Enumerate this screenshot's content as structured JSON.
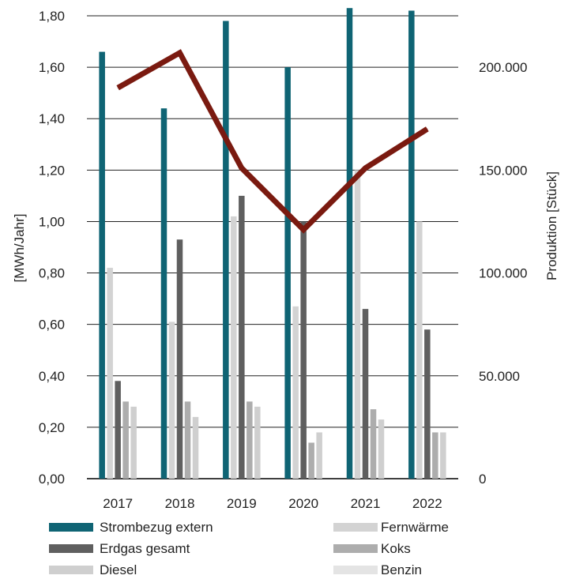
{
  "chart_data": {
    "type": "bar",
    "categories": [
      "2017",
      "2018",
      "2019",
      "2020",
      "2021",
      "2022"
    ],
    "ylabel": "[MWh/Jahr]",
    "ylim": [
      0,
      1.8
    ],
    "y_ticks": [
      "0,00",
      "0,20",
      "0,40",
      "0,60",
      "0,80",
      "1,00",
      "1,20",
      "1,40",
      "1,60",
      "1,80"
    ],
    "y2label": "Produktion [Stück]",
    "y2lim": [
      0,
      225000
    ],
    "y2_ticks": [
      "0",
      "50.000",
      "100.000",
      "150.000",
      "200.000"
    ],
    "grid": true,
    "legend_position": "bottom",
    "series": [
      {
        "name": "Strombezug extern",
        "color": "#0f6474",
        "values": [
          1.66,
          1.44,
          1.78,
          1.6,
          1.83,
          1.82
        ]
      },
      {
        "name": "Fernwärme",
        "color": "#d3d3d3",
        "values": [
          0.82,
          0.61,
          1.02,
          0.67,
          1.2,
          1.0
        ]
      },
      {
        "name": "Erdgas gesamt",
        "color": "#5f5f5f",
        "values": [
          0.38,
          0.93,
          1.1,
          1.0,
          0.66,
          0.58
        ]
      },
      {
        "name": "Koks",
        "color": "#adadad",
        "values": [
          0.3,
          0.3,
          0.3,
          0.14,
          0.27,
          0.18
        ]
      },
      {
        "name": "Diesel",
        "color": "#cfcfcf",
        "values": [
          0.28,
          0.24,
          0.28,
          0.18,
          0.23,
          0.18
        ]
      }
    ],
    "legend_entries": [
      {
        "name": "Strombezug extern",
        "color": "#0f6474"
      },
      {
        "name": "Fernwärme",
        "color": "#d3d3d3"
      },
      {
        "name": "Erdgas gesamt",
        "color": "#5f5f5f"
      },
      {
        "name": "Koks",
        "color": "#adadad"
      },
      {
        "name": "Diesel",
        "color": "#cfcfcf"
      },
      {
        "name": "Benzin",
        "color": "#e4e4e4"
      }
    ],
    "line_series": {
      "type": "line",
      "axis": "right",
      "color": "#7a1a10",
      "values": [
        190000,
        207000,
        151000,
        121000,
        151000,
        170000
      ]
    }
  }
}
